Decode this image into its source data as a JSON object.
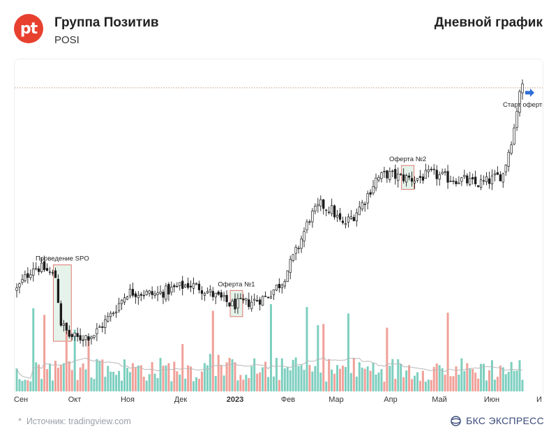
{
  "header": {
    "logo_text": "pt",
    "company_name": "Группа Позитив",
    "ticker": "POSI",
    "chart_kind": "Дневной график"
  },
  "footer": {
    "source": "Источник: tradingview.com",
    "brand": "БКС ЭКСПРЕСС"
  },
  "colors": {
    "brand_red": "#e8402f",
    "candle_body": "#ffffff",
    "candle_outline": "#1a1a1a",
    "volume_up": "#7dcfbf",
    "volume_down": "#f0a099",
    "annotation_fill": "#e5f3ea",
    "annotation_border": "#e07a72",
    "moving_average": "#b8b8b8",
    "dotted_line": "#c9987a",
    "arrow": "#2f6fd6",
    "brand_blue": "#3a4a7a"
  },
  "chart_data": {
    "type": "candlestick",
    "x_ticks": [
      "Сен",
      "Окт",
      "Ноя",
      "Дек",
      "2023",
      "Фев",
      "Мар",
      "Апр",
      "Май",
      "Июн",
      "И"
    ],
    "annotations": [
      {
        "label": "Проведение SPO",
        "box_from_day": 14,
        "box_to_day": 19
      },
      {
        "label": "Оферта №1",
        "box_from_day": 78,
        "box_to_day": 81
      },
      {
        "label": "Оферта №2",
        "box_from_day": 140,
        "box_to_day": 143
      },
      {
        "label": "Старт оферты",
        "arrow_day": 183
      }
    ],
    "price_path": [
      [
        0,
        565
      ],
      [
        6,
        610
      ],
      [
        10,
        605
      ],
      [
        14,
        590
      ],
      [
        16,
        500
      ],
      [
        19,
        475
      ],
      [
        22,
        470
      ],
      [
        28,
        478
      ],
      [
        34,
        515
      ],
      [
        40,
        560
      ],
      [
        44,
        560
      ],
      [
        50,
        555
      ],
      [
        56,
        565
      ],
      [
        62,
        575
      ],
      [
        66,
        570
      ],
      [
        72,
        552
      ],
      [
        78,
        535
      ],
      [
        84,
        540
      ],
      [
        90,
        550
      ],
      [
        96,
        580
      ],
      [
        102,
        650
      ],
      [
        106,
        705
      ],
      [
        110,
        730
      ],
      [
        114,
        720
      ],
      [
        118,
        690
      ],
      [
        122,
        710
      ],
      [
        126,
        740
      ],
      [
        130,
        780
      ],
      [
        134,
        790
      ],
      [
        138,
        785
      ],
      [
        144,
        780
      ],
      [
        150,
        790
      ],
      [
        156,
        782
      ],
      [
        162,
        778
      ],
      [
        166,
        770
      ],
      [
        170,
        775
      ],
      [
        176,
        790
      ],
      [
        180,
        880
      ],
      [
        182,
        955
      ],
      [
        184,
        960
      ]
    ],
    "dotted_level": 958,
    "volume_baseline": 30
  }
}
